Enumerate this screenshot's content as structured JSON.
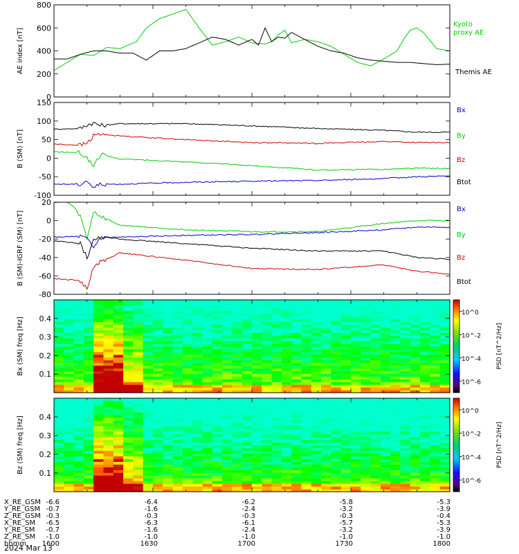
{
  "date_label": "2024 Mar 13",
  "chart_data": [
    {
      "type": "line",
      "ylabel": "AE index [nT]",
      "ylim": [
        0,
        800
      ],
      "yticks": [
        "0",
        "200",
        "400",
        "600",
        "800"
      ],
      "series": [
        {
          "name": "Kyoto proxy AE",
          "color": "#00cc00",
          "x": [
            0,
            4,
            8,
            12,
            16,
            20,
            25,
            28,
            32,
            36,
            40,
            44,
            48,
            52,
            56,
            60,
            64,
            66,
            68,
            70,
            72,
            76,
            80,
            84,
            88,
            92,
            96,
            100,
            104,
            106,
            108,
            110,
            112,
            116,
            120
          ],
          "values": [
            230,
            300,
            370,
            360,
            430,
            420,
            480,
            600,
            680,
            720,
            760,
            600,
            450,
            480,
            520,
            470,
            460,
            480,
            540,
            580,
            470,
            500,
            480,
            440,
            370,
            300,
            270,
            330,
            400,
            500,
            580,
            600,
            560,
            420,
            400
          ]
        },
        {
          "name": "Themis AE",
          "color": "#000000",
          "x": [
            0,
            4,
            8,
            12,
            16,
            20,
            24,
            28,
            32,
            36,
            40,
            44,
            48,
            52,
            56,
            60,
            62,
            64,
            66,
            68,
            70,
            72,
            76,
            80,
            84,
            88,
            92,
            96,
            100,
            104,
            108,
            112,
            116,
            120
          ],
          "values": [
            330,
            330,
            370,
            400,
            400,
            380,
            380,
            320,
            400,
            400,
            420,
            470,
            520,
            500,
            450,
            500,
            450,
            600,
            480,
            520,
            510,
            560,
            500,
            440,
            400,
            380,
            340,
            320,
            310,
            300,
            300,
            290,
            280,
            285
          ]
        }
      ]
    },
    {
      "type": "line",
      "ylabel": "B (SM) [nT]",
      "ylim": [
        -100,
        150
      ],
      "yticks": [
        "-100",
        "-50",
        "0",
        "50",
        "100",
        "150"
      ],
      "legend": [
        "Bx",
        "By",
        "Bz",
        "Btot"
      ],
      "legend_colors": [
        "#0000cc",
        "#00cc00",
        "#cc0000",
        "#000000"
      ],
      "series": [
        {
          "name": "Btot",
          "color": "#000000",
          "x": [
            0,
            8,
            10,
            12,
            14,
            20,
            40,
            60,
            80,
            100,
            110,
            120
          ],
          "values": [
            78,
            80,
            90,
            95,
            88,
            93,
            93,
            87,
            80,
            75,
            70,
            70
          ]
        },
        {
          "name": "Bz",
          "color": "#cc0000",
          "x": [
            0,
            8,
            10,
            12,
            14,
            20,
            40,
            60,
            80,
            100,
            110,
            120
          ],
          "values": [
            38,
            35,
            40,
            60,
            65,
            60,
            50,
            42,
            40,
            45,
            42,
            42
          ]
        },
        {
          "name": "By",
          "color": "#00cc00",
          "x": [
            0,
            8,
            10,
            12,
            14,
            20,
            40,
            60,
            80,
            100,
            110,
            120
          ],
          "values": [
            17,
            15,
            0,
            -20,
            10,
            -2,
            -10,
            -20,
            -32,
            -30,
            -27,
            -28
          ]
        },
        {
          "name": "Bx",
          "color": "#0000cc",
          "x": [
            0,
            8,
            10,
            12,
            14,
            20,
            40,
            60,
            80,
            100,
            110,
            120
          ],
          "values": [
            -70,
            -70,
            -60,
            -80,
            -70,
            -70,
            -65,
            -62,
            -60,
            -55,
            -50,
            -48
          ]
        }
      ]
    },
    {
      "type": "line",
      "ylabel": "B (SM)-IGRF (SM) [nT]",
      "ylim": [
        -80,
        20
      ],
      "yticks": [
        "-80",
        "-60",
        "-40",
        "-20",
        "0",
        "20"
      ],
      "legend": [
        "Bx",
        "By",
        "Bz",
        "Btot"
      ],
      "legend_colors": [
        "#0000cc",
        "#00cc00",
        "#cc0000",
        "#000000"
      ],
      "series": [
        {
          "name": "By",
          "color": "#00cc00",
          "x": [
            0,
            4,
            6,
            8,
            10,
            12,
            14,
            20,
            40,
            60,
            80,
            100,
            110,
            120
          ],
          "values": [
            20,
            20,
            15,
            5,
            -20,
            10,
            5,
            -5,
            -10,
            -12,
            -12,
            -3,
            0,
            0
          ]
        },
        {
          "name": "Bx",
          "color": "#0000cc",
          "x": [
            0,
            8,
            10,
            12,
            14,
            20,
            40,
            60,
            80,
            100,
            110,
            120
          ],
          "values": [
            -18,
            -17,
            -20,
            -30,
            -18,
            -18,
            -16,
            -15,
            -13,
            -10,
            -7,
            -7
          ]
        },
        {
          "name": "Btot",
          "color": "#000000",
          "x": [
            0,
            8,
            10,
            12,
            14,
            20,
            40,
            60,
            80,
            100,
            110,
            120
          ],
          "values": [
            -22,
            -25,
            -40,
            -22,
            -18,
            -20,
            -25,
            -30,
            -33,
            -33,
            -40,
            -42
          ]
        },
        {
          "name": "Bz",
          "color": "#cc0000",
          "x": [
            0,
            8,
            10,
            12,
            14,
            20,
            40,
            60,
            80,
            100,
            110,
            120
          ],
          "values": [
            -63,
            -65,
            -75,
            -50,
            -45,
            -35,
            -43,
            -52,
            -53,
            -48,
            -55,
            -58
          ]
        }
      ]
    },
    {
      "type": "heatmap",
      "ylabel": "Bx (SM) freq [Hz]",
      "ylim": [
        0,
        0.5
      ],
      "yticks": [
        "0.1",
        "0.2",
        "0.3",
        "0.4"
      ],
      "colorbar_label": "PSD [nT^2/Hz]",
      "colorbar_ticks": [
        "10^0",
        "10^-2",
        "10^-4",
        "10^-6"
      ],
      "colorbar_exponents": [
        0,
        -2,
        -4,
        -6
      ]
    },
    {
      "type": "heatmap",
      "ylabel": "Bz (SM) freq [Hz]",
      "ylim": [
        0,
        0.5
      ],
      "yticks": [
        "0.1",
        "0.2",
        "0.3",
        "0.4"
      ],
      "colorbar_label": "PSD [nT^2/Hz]",
      "colorbar_ticks": [
        "10^0",
        "10^-2",
        "10^-4",
        "10^-6"
      ],
      "colorbar_exponents": [
        0,
        -2,
        -4,
        -6
      ]
    }
  ],
  "ephemeris": {
    "labels": [
      "X_RE_GSM",
      "Y_RE_GSM",
      "Z_RE_GSM",
      "X_RE_SM",
      "Y_RE_SM",
      "Z_RE_SM",
      "hhmm"
    ],
    "columns": [
      [
        "-6.6",
        "-0.7",
        "-0.3",
        "-6.5",
        "-0.7",
        "-1.0",
        "1600"
      ],
      [
        "-6.4",
        "-1.6",
        "-0.3",
        "-6.3",
        "-1.6",
        "-1.0",
        "1630"
      ],
      [
        "-6.2",
        "-2.4",
        "-0.3",
        "-6.1",
        "-2.4",
        "-1.0",
        "1700"
      ],
      [
        "-5.8",
        "-3.2",
        "-0.3",
        "-5.7",
        "-3.2",
        "-1.0",
        "1730"
      ],
      [
        "-5.3",
        "-3.9",
        "-0.4",
        "-5.3",
        "-3.9",
        "-1.0",
        "1800"
      ]
    ]
  }
}
